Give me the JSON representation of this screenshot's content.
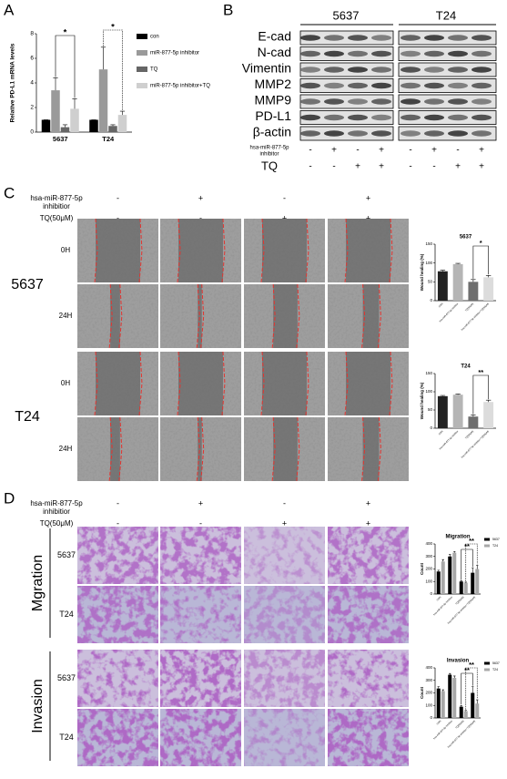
{
  "chart_data": [
    {
      "type": "bar",
      "y_label": "Relative PD-L1 mRNA levels",
      "categories": [
        "5637",
        "T24"
      ],
      "series": [
        {
          "name": "con",
          "color": "#000000",
          "values": [
            1,
            1
          ],
          "errors": [
            0,
            0
          ]
        },
        {
          "name": "miR-877-5p inhibitor",
          "color": "#9a9a9a",
          "values": [
            3.4,
            5.1
          ],
          "errors": [
            1,
            1.8
          ]
        },
        {
          "name": "TQ",
          "color": "#666666",
          "values": [
            0.4,
            0.5
          ],
          "errors": [
            0.2,
            0.1
          ]
        },
        {
          "name": "miR-877-5p inhibitor+TQ",
          "color": "#cfcfcf",
          "values": [
            1.9,
            1.4
          ],
          "errors": [
            0.8,
            0.3
          ]
        }
      ],
      "ylim": [
        0,
        8
      ],
      "yticks": [
        0,
        2,
        4,
        6,
        8
      ],
      "annotations": [
        "*",
        "*"
      ],
      "legend": "right"
    },
    {
      "type": "bar",
      "title": "5637",
      "y_label": "Wound healing (%)",
      "categories": [
        "CON",
        "hsa-miR-877-5p inhibitor",
        "TQ(50μM)",
        "hsa-miR-877-5p inhibitor+TQ(50μM)"
      ],
      "values": [
        78,
        97,
        50,
        62
      ],
      "errors": [
        3,
        2,
        6,
        5
      ],
      "colors": [
        "#222222",
        "#b5b5b5",
        "#6e6e6e",
        "#dcdcdc"
      ],
      "ylim": [
        0,
        150
      ],
      "yticks": [
        0,
        50,
        100,
        150
      ],
      "annotations": [
        "*"
      ]
    },
    {
      "type": "bar",
      "title": "T24",
      "y_label": "Wound healing (%)",
      "categories": [
        "CON",
        "hsa-miR-877-5p inhibitor",
        "TQ(50μM)",
        "hsa-miR-877-5p inhibitor+TQ(50μM)"
      ],
      "values": [
        88,
        92,
        32,
        72
      ],
      "errors": [
        2,
        2,
        4,
        5
      ],
      "colors": [
        "#222222",
        "#b5b5b5",
        "#6e6e6e",
        "#dcdcdc"
      ],
      "ylim": [
        0,
        150
      ],
      "yticks": [
        0,
        50,
        100,
        150
      ],
      "annotations": [
        "**"
      ]
    },
    {
      "type": "bar",
      "title": "Migration",
      "y_label": "Count",
      "categories": [
        "CON",
        "hsa-miR-877-5p inhibitor",
        "TQ(50μM)",
        "hsa-miR-877-5p inhibitor+TQ(50μM)"
      ],
      "series": [
        {
          "name": "5637",
          "color": "#000000",
          "values": [
            180,
            300,
            100,
            170
          ],
          "errors": [
            10,
            15,
            5,
            40
          ]
        },
        {
          "name": "T24",
          "color": "#a8a8a8",
          "values": [
            260,
            330,
            90,
            200
          ],
          "errors": [
            15,
            10,
            5,
            30
          ]
        }
      ],
      "ylim": [
        0,
        400
      ],
      "yticks": [
        0,
        100,
        200,
        300,
        400
      ],
      "annotations": [
        "**",
        "**"
      ],
      "legend": "top right"
    },
    {
      "type": "bar",
      "title": "Invasion",
      "y_label": "Count",
      "categories": [
        "CON",
        "hsa-miR-877-5p inhibitor",
        "TQ(50μM)",
        "hsa-miR-877-5p inhibitor+TQ(50μM)"
      ],
      "series": [
        {
          "name": "5637",
          "color": "#000000",
          "values": [
            235,
            345,
            90,
            200
          ],
          "errors": [
            15,
            10,
            10,
            50
          ]
        },
        {
          "name": "T24",
          "color": "#a8a8a8",
          "values": [
            215,
            320,
            55,
            115
          ],
          "errors": [
            10,
            15,
            5,
            30
          ]
        }
      ],
      "ylim": [
        0,
        400
      ],
      "yticks": [
        0,
        100,
        200,
        300,
        400
      ],
      "annotations": [
        "**",
        "**"
      ],
      "legend": "top right"
    }
  ],
  "panels": [
    "A",
    "B",
    "C",
    "D"
  ],
  "blot": {
    "cell_lines": [
      "5637",
      "T24"
    ],
    "proteins": [
      "E-cad",
      "N-cad",
      "Vimentin",
      "MMP2",
      "MMP9",
      "PD-L1",
      "β-actin"
    ],
    "treatments": [
      {
        "label": [
          "hsa-miR-877-5p",
          "inhibitor"
        ],
        "signs": [
          "-",
          "+",
          "-",
          "+",
          "-",
          "+",
          "-",
          "+"
        ]
      },
      {
        "label": [
          "TQ"
        ],
        "signs": [
          "-",
          "-",
          "+",
          "+",
          "-",
          "-",
          "+",
          "+"
        ]
      }
    ]
  },
  "wound": {
    "treatments": [
      {
        "label": [
          "hsa-miR-877-5p",
          "inhibitior"
        ],
        "signs": [
          "-",
          "+",
          "-",
          "+"
        ]
      },
      {
        "label": [
          "TQ(50μM)"
        ],
        "signs": [
          "-",
          "-",
          "+",
          "+"
        ]
      }
    ],
    "cell_lines": [
      "5637",
      "T24"
    ],
    "times": [
      "0H",
      "24H"
    ]
  },
  "transwell": {
    "treatments": [
      {
        "label": [
          "hsa-miR-877-5p",
          "inhibitior"
        ],
        "signs": [
          "-",
          "+",
          "-",
          "+"
        ]
      },
      {
        "label": [
          "TQ(50μM)"
        ],
        "signs": [
          "-",
          "-",
          "+",
          "+"
        ]
      }
    ],
    "assays": [
      "Mgration",
      "Invasion"
    ],
    "cell_lines": [
      "5637",
      "T24"
    ]
  }
}
